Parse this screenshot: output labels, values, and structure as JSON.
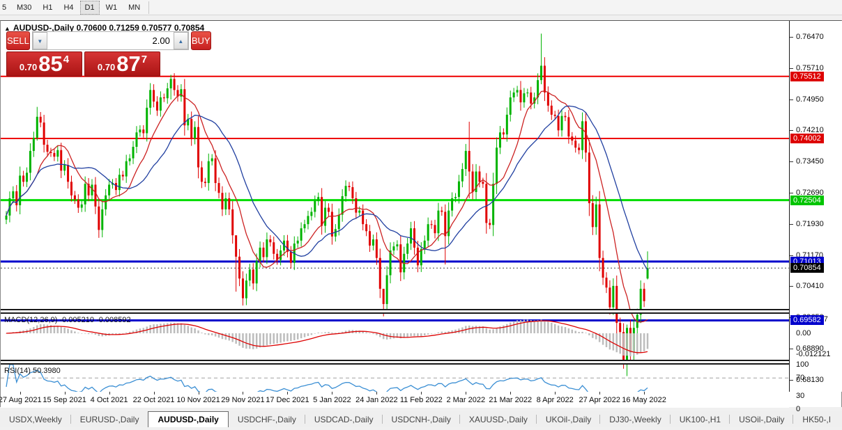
{
  "toolbar": {
    "timeframes": [
      "5",
      "M30",
      "H1",
      "H4",
      "D1",
      "W1",
      "MN"
    ],
    "active_timeframe": "D1"
  },
  "info_line": {
    "collapse_icon": "▲",
    "symbol": "AUDUSD-,Daily",
    "open": "0.70600",
    "high": "0.71259",
    "low": "0.70577",
    "close": "0.70854"
  },
  "trade_panel": {
    "sell_label": "SELL",
    "buy_label": "BUY",
    "volume": "2.00",
    "down_arrow_icon": "▼",
    "up_arrow_icon": "▲",
    "sell_price": {
      "prefix": "0.70",
      "big": "85",
      "sup": "4"
    },
    "buy_price": {
      "prefix": "0.70",
      "big": "87",
      "sup": "7"
    }
  },
  "price_axis": {
    "ticks": [
      "0.76470",
      "0.75710",
      "0.74950",
      "0.74210",
      "0.73450",
      "0.72690",
      "0.71930",
      "0.71170",
      "0.70410",
      "0.69650",
      "0.68890",
      "0.68130"
    ],
    "badges": [
      {
        "text": "0.75512",
        "value": 0.75512,
        "color": "#dd0000"
      },
      {
        "text": "0.74002",
        "value": 0.74002,
        "color": "#dd0000"
      },
      {
        "text": "0.72504",
        "value": 0.72504,
        "color": "#00c400"
      },
      {
        "text": "0.71013",
        "value": 0.71013,
        "color": "#0000cc"
      },
      {
        "text": "0.70854",
        "value": 0.70854,
        "color": "#000000"
      },
      {
        "text": "0.69582",
        "value": 0.69582,
        "color": "#0000cc"
      }
    ]
  },
  "date_axis": [
    {
      "label": "27 Aug 2021",
      "index": 4
    },
    {
      "label": "15 Sep 2021",
      "index": 17
    },
    {
      "label": "4 Oct 2021",
      "index": 30
    },
    {
      "label": "22 Oct 2021",
      "index": 43
    },
    {
      "label": "10 Nov 2021",
      "index": 56
    },
    {
      "label": "29 Nov 2021",
      "index": 69
    },
    {
      "label": "17 Dec 2021",
      "index": 82
    },
    {
      "label": "5 Jan 2022",
      "index": 95
    },
    {
      "label": "24 Jan 2022",
      "index": 108
    },
    {
      "label": "11 Feb 2022",
      "index": 121
    },
    {
      "label": "2 Mar 2022",
      "index": 134
    },
    {
      "label": "21 Mar 2022",
      "index": 147
    },
    {
      "label": "8 Apr 2022",
      "index": 160
    },
    {
      "label": "27 Apr 2022",
      "index": 173
    },
    {
      "label": "16 May 2022",
      "index": 186
    }
  ],
  "chart_data": {
    "type": "candlestick",
    "symbol": "AUDUSD-",
    "timeframe": "Daily",
    "title_ohlc": {
      "open": 0.706,
      "high": 0.71259,
      "low": 0.70577,
      "close": 0.70854
    },
    "price_range": {
      "top": 0.7686,
      "bottom": 0.6795
    },
    "sr_lines": [
      {
        "price": 0.75512,
        "color": "#ee0000",
        "width": 2
      },
      {
        "price": 0.74002,
        "color": "#ee0000",
        "width": 2
      },
      {
        "price": 0.72504,
        "color": "#00dd00",
        "width": 3
      },
      {
        "price": 0.71013,
        "color": "#0000cc",
        "width": 3
      },
      {
        "price": 0.69582,
        "color": "#0000cc",
        "width": 3
      }
    ],
    "current_price": 0.70854,
    "closes": [
      0.7213,
      0.7255,
      0.7272,
      0.7238,
      0.731,
      0.7295,
      0.7317,
      0.737,
      0.7402,
      0.7453,
      0.7439,
      0.7385,
      0.7368,
      0.7365,
      0.7356,
      0.7372,
      0.7322,
      0.7336,
      0.7295,
      0.7262,
      0.7252,
      0.7232,
      0.724,
      0.729,
      0.7262,
      0.7288,
      0.7235,
      0.7178,
      0.7228,
      0.7262,
      0.7288,
      0.7292,
      0.7275,
      0.7312,
      0.7308,
      0.7345,
      0.7352,
      0.738,
      0.7415,
      0.7422,
      0.7413,
      0.7475,
      0.7518,
      0.749,
      0.7468,
      0.75,
      0.7498,
      0.7522,
      0.7545,
      0.7518,
      0.7502,
      0.752,
      0.7432,
      0.7448,
      0.74,
      0.7428,
      0.733,
      0.7295,
      0.7292,
      0.7345,
      0.7352,
      0.7292,
      0.7268,
      0.7228,
      0.7255,
      0.7228,
      0.7165,
      0.7113,
      0.706,
      0.7012,
      0.7055,
      0.7082,
      0.7048,
      0.7102,
      0.7135,
      0.7112,
      0.7155,
      0.7148,
      0.712,
      0.7105,
      0.7128,
      0.7152,
      0.7125,
      0.7098,
      0.7145,
      0.7152,
      0.7182,
      0.7192,
      0.7212,
      0.7222,
      0.7248,
      0.7258,
      0.7188,
      0.7232,
      0.7222,
      0.7162,
      0.718,
      0.7215,
      0.726,
      0.7285,
      0.7282,
      0.7255,
      0.722,
      0.7225,
      0.7192,
      0.7175,
      0.714,
      0.7155,
      0.711,
      0.7035,
      0.6998,
      0.7068,
      0.7128,
      0.7138,
      0.7143,
      0.7075,
      0.712,
      0.7145,
      0.7182,
      0.7135,
      0.7092,
      0.7132,
      0.7152,
      0.7192,
      0.719,
      0.717,
      0.7225,
      0.7222,
      0.7163,
      0.7225,
      0.7255,
      0.7258,
      0.7296,
      0.7326,
      0.737,
      0.732,
      0.727,
      0.732,
      0.7295,
      0.729,
      0.7195,
      0.719,
      0.729,
      0.7378,
      0.7415,
      0.741,
      0.7458,
      0.75,
      0.7512,
      0.7518,
      0.7488,
      0.751,
      0.7512,
      0.7485,
      0.75,
      0.7542,
      0.7577,
      0.7512,
      0.748,
      0.7458,
      0.7455,
      0.742,
      0.7455,
      0.7452,
      0.7405,
      0.7395,
      0.7378,
      0.7372,
      0.7442,
      0.7366,
      0.7243,
      0.7185,
      0.724,
      0.711,
      0.7062,
      0.7038,
      0.699,
      0.7042,
      0.6952,
      0.693,
      0.6862,
      0.694,
      0.688,
      0.694,
      0.6972,
      0.7035,
      0.7005,
      0.70854
    ],
    "wick_overrides": {
      "9": [
        0.7477,
        0.7395
      ],
      "48": [
        0.7555,
        0.7495
      ],
      "67": [
        0.7148,
        0.7028
      ],
      "110": [
        0.7032,
        0.6968
      ],
      "128": [
        0.724,
        0.7094
      ],
      "135": [
        0.7441,
        0.7255
      ],
      "150": [
        0.754,
        0.7468
      ],
      "156": [
        0.7655,
        0.7532
      ],
      "181": [
        0.6948,
        0.6823
      ],
      "187": [
        0.71259,
        0.70577
      ]
    },
    "last_candle_open": 0.706,
    "macd": {
      "label": "MACD(12,26,9) -0.005210 -0.008592",
      "params": [
        12,
        26,
        9
      ],
      "current_main": -0.00521,
      "current_signal": -0.008592,
      "axis_ticks": [
        {
          "label": "0.008197",
          "value": 0.008197
        },
        {
          "label": "0.00",
          "value": 0
        },
        {
          "label": "-0.012121",
          "value": -0.012121
        }
      ]
    },
    "rsi": {
      "label": "RSI(14) 50.3980",
      "period": 14,
      "current": 50.398,
      "axis_ticks": [
        {
          "label": "100",
          "value": 100
        },
        {
          "label": "70",
          "value": 70
        },
        {
          "label": "30",
          "value": 30
        },
        {
          "label": "0",
          "value": 0
        }
      ],
      "dashed_levels": [
        70,
        30
      ]
    }
  },
  "tabs": {
    "items": [
      "USDX,Weekly",
      "EURUSD-,Daily",
      "AUDUSD-,Daily",
      "USDCHF-,Daily",
      "USDCAD-,Daily",
      "USDCNH-,Daily",
      "XAUUSD-,Daily",
      "UKOil-,Daily",
      "DJ30-,Weekly",
      "UK100-,H1",
      "USOil-,Daily",
      "HK50-,I"
    ],
    "active_index": 2,
    "scroll_left_icon": "◄",
    "scroll_right_icon": "►"
  },
  "colors": {
    "bull": "#00b300",
    "bear": "#e00000",
    "ma_fast": "#cc2222",
    "ma_slow": "#203fa0",
    "macd_hist": "#bdbdbd",
    "macd_signal": "#dd0000",
    "rsi_line": "#3b8fd4",
    "grid_dash": "#a0a0a0",
    "current_price_line": "#444444"
  }
}
